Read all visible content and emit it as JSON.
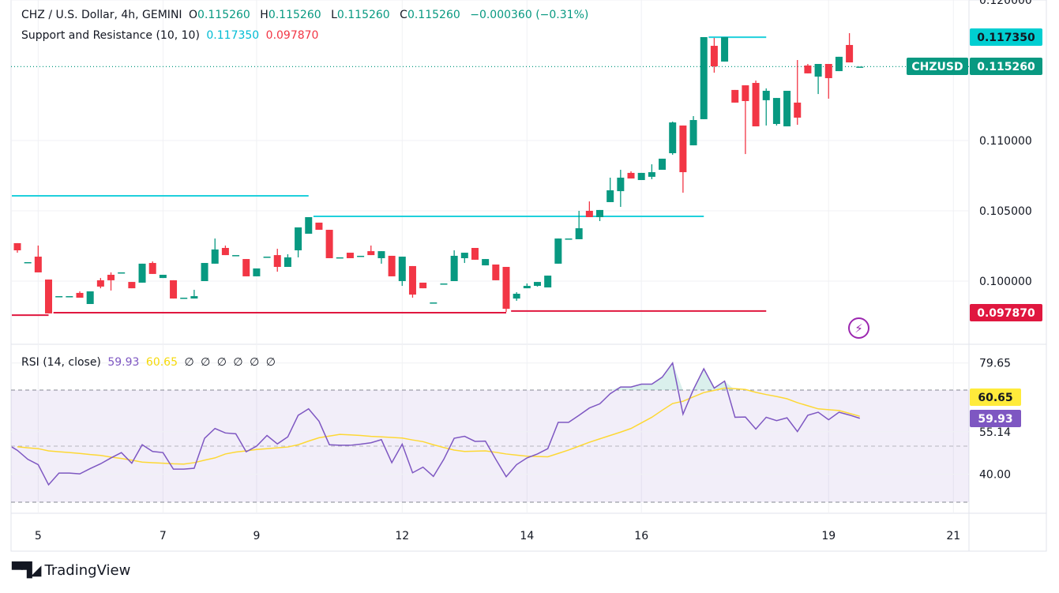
{
  "header": {
    "symbol": "CHZ / U.S. Dollar, 4h, GEMINI",
    "o_label": "O",
    "o": "0.115260",
    "h_label": "H",
    "h": "0.115260",
    "l_label": "L",
    "l": "0.115260",
    "c_label": "C",
    "c": "0.115260",
    "change": "−0.000360 (−0.31%)"
  },
  "indicator": {
    "name": "Support and Resistance (10, 10)",
    "resistance": "0.117350",
    "support": "0.097870"
  },
  "rsi_legend": {
    "name": "RSI (14, close)",
    "rsi": "59.93",
    "ma": "60.65",
    "empty_values": [
      "∅",
      "∅",
      "∅",
      "∅",
      "∅",
      "∅"
    ]
  },
  "badges": {
    "resistance": "0.117350",
    "symbol": "CHZUSD",
    "last_price": "0.115260",
    "support": "0.097870",
    "rsi_ma": "60.65",
    "rsi": "59.93"
  },
  "colors": {
    "up": "#089981",
    "down": "#f23645",
    "resistance": "#1fd0dc",
    "support": "#e0173f",
    "rsi": "#7e57c2",
    "rsi_ma": "#fdd835",
    "last_price": "#089981"
  },
  "branding": {
    "logo_text": "TradingView",
    "logo_mark": "TV"
  },
  "icons": {
    "alert": "lightning-icon"
  },
  "chart_data": [
    {
      "type": "candlestick",
      "title": "CHZ / U.S. Dollar, 4h, GEMINI",
      "ylim": [
        0.0953,
        0.12
      ],
      "y_ticks": [
        "0.120000",
        "0.110000",
        "0.105000",
        "0.100000"
      ],
      "y_tick_values": [
        0.12,
        0.11,
        0.105,
        0.1
      ],
      "x_ticks": [
        {
          "label": "5",
          "candle": 3
        },
        {
          "label": "7",
          "candle": 15
        },
        {
          "label": "9",
          "candle": 24
        },
        {
          "label": "12",
          "candle": 38
        },
        {
          "label": "14",
          "candle": 50
        },
        {
          "label": "16",
          "candle": 61
        },
        {
          "label": "19",
          "candle": 79
        },
        {
          "label": "21",
          "candle": 91
        }
      ],
      "last_price": 0.11526,
      "candles_ohlc": [
        [
          0.1027,
          0.1027,
          0.10202,
          0.10219
        ],
        [
          0.10135,
          0.10135,
          0.10135,
          0.10135
        ],
        [
          0.10174,
          0.10253,
          0.10062,
          0.10062
        ],
        [
          0.10011,
          0.10011,
          0.0977,
          0.0977
        ],
        [
          0.09893,
          0.09893,
          0.09893,
          0.09893
        ],
        [
          0.09893,
          0.09893,
          0.09893,
          0.09893
        ],
        [
          0.09916,
          0.09927,
          0.09882,
          0.09882
        ],
        [
          0.09837,
          0.09927,
          0.09837,
          0.09927
        ],
        [
          0.10006,
          0.10022,
          0.09949,
          0.09961
        ],
        [
          0.10045,
          0.10062,
          0.09933,
          0.10006
        ],
        [
          0.10062,
          0.10062,
          0.10062,
          0.10062
        ],
        [
          0.09994,
          0.09994,
          0.09949,
          0.09949
        ],
        [
          0.09989,
          0.10124,
          0.09989,
          0.10124
        ],
        [
          0.10129,
          0.1014,
          0.10051,
          0.10051
        ],
        [
          0.10022,
          0.10045,
          0.10022,
          0.10045
        ],
        [
          0.10006,
          0.10006,
          0.09876,
          0.09876
        ],
        [
          0.09882,
          0.09882,
          0.09882,
          0.09882
        ],
        [
          0.09876,
          0.09938,
          0.09876,
          0.09893
        ],
        [
          0.1,
          0.10129,
          0.1,
          0.10129
        ],
        [
          0.10124,
          0.10303,
          0.10124,
          0.10225
        ],
        [
          0.10236,
          0.10253,
          0.10185,
          0.10185
        ],
        [
          0.10185,
          0.10185,
          0.10185,
          0.10185
        ],
        [
          0.10157,
          0.10157,
          0.10034,
          0.10034
        ],
        [
          0.10034,
          0.1009,
          0.10034,
          0.1009
        ],
        [
          0.10174,
          0.10174,
          0.10174,
          0.10174
        ],
        [
          0.10185,
          0.1023,
          0.10067,
          0.10101
        ],
        [
          0.10101,
          0.10191,
          0.10101,
          0.10169
        ],
        [
          0.10219,
          0.10382,
          0.10169,
          0.10382
        ],
        [
          0.10337,
          0.10455,
          0.10337,
          0.10455
        ],
        [
          0.10416,
          0.10416,
          0.10365,
          0.10365
        ],
        [
          0.10365,
          0.10365,
          0.10163,
          0.10163
        ],
        [
          0.10169,
          0.10169,
          0.10169,
          0.10169
        ],
        [
          0.10202,
          0.10202,
          0.10163,
          0.10163
        ],
        [
          0.1018,
          0.1018,
          0.1018,
          0.1018
        ],
        [
          0.10213,
          0.10253,
          0.10185,
          0.10185
        ],
        [
          0.10163,
          0.10213,
          0.10124,
          0.10213
        ],
        [
          0.1018,
          0.1018,
          0.10034,
          0.10034
        ],
        [
          0.1,
          0.10174,
          0.09966,
          0.10174
        ],
        [
          0.10107,
          0.10107,
          0.09882,
          0.09904
        ],
        [
          0.09989,
          0.09989,
          0.09949,
          0.09949
        ],
        [
          0.09848,
          0.09848,
          0.09848,
          0.09848
        ],
        [
          0.09983,
          0.09983,
          0.09983,
          0.09983
        ],
        [
          0.1,
          0.10219,
          0.1,
          0.1018
        ],
        [
          0.10163,
          0.10202,
          0.10129,
          0.10202
        ],
        [
          0.10236,
          0.10236,
          0.10152,
          0.10152
        ],
        [
          0.10112,
          0.10157,
          0.10112,
          0.10157
        ],
        [
          0.10118,
          0.10118,
          0.10006,
          0.10006
        ],
        [
          0.10101,
          0.10101,
          0.09781,
          0.09803
        ],
        [
          0.09876,
          0.09921,
          0.0986,
          0.0991
        ],
        [
          0.09949,
          0.09983,
          0.09949,
          0.09966
        ],
        [
          0.09966,
          0.09994,
          0.09961,
          0.09994
        ],
        [
          0.09955,
          0.10039,
          0.09955,
          0.10039
        ],
        [
          0.10124,
          0.10303,
          0.10124,
          0.10303
        ],
        [
          0.10303,
          0.10303,
          0.10303,
          0.10303
        ],
        [
          0.10298,
          0.105,
          0.10298,
          0.10376
        ],
        [
          0.105,
          0.10567,
          0.10455,
          0.10455
        ],
        [
          0.10455,
          0.10506,
          0.10427,
          0.10506
        ],
        [
          0.10562,
          0.10736,
          0.10562,
          0.10646
        ],
        [
          0.1064,
          0.10792,
          0.10528,
          0.10736
        ],
        [
          0.1077,
          0.10781,
          0.1073,
          0.1073
        ],
        [
          0.10719,
          0.1077,
          0.10719,
          0.1077
        ],
        [
          0.10742,
          0.10831,
          0.10725,
          0.10775
        ],
        [
          0.10792,
          0.10871,
          0.10792,
          0.10871
        ],
        [
          0.1091,
          0.11135,
          0.10899,
          0.11129
        ],
        [
          0.11107,
          0.11107,
          0.10629,
          0.10775
        ],
        [
          0.10966,
          0.11174,
          0.10966,
          0.11146
        ],
        [
          0.11152,
          0.11736,
          0.11152,
          0.11736
        ],
        [
          0.11674,
          0.1173,
          0.11483,
          0.11528
        ],
        [
          0.11562,
          0.11736,
          0.11562,
          0.11736
        ],
        [
          0.1136,
          0.1136,
          0.1127,
          0.1127
        ],
        [
          0.11393,
          0.11393,
          0.10904,
          0.11281
        ],
        [
          0.1141,
          0.11427,
          0.11101,
          0.11101
        ],
        [
          0.11287,
          0.11371,
          0.11107,
          0.11354
        ],
        [
          0.11118,
          0.11303,
          0.11107,
          0.11303
        ],
        [
          0.11101,
          0.11354,
          0.11101,
          0.11354
        ],
        [
          0.1127,
          0.11573,
          0.11112,
          0.11163
        ],
        [
          0.11534,
          0.11545,
          0.11478,
          0.11478
        ],
        [
          0.11455,
          0.11545,
          0.11331,
          0.11545
        ],
        [
          0.11545,
          0.11545,
          0.11298,
          0.11444
        ],
        [
          0.11494,
          0.11596,
          0.11494,
          0.11596
        ],
        [
          0.1168,
          0.11764,
          0.11556,
          0.11556
        ],
        [
          0.11526,
          0.11526,
          0.11526,
          0.11526
        ]
      ],
      "resistance_segments": [
        {
          "from": 0,
          "to": 28,
          "price": 0.10607
        },
        {
          "from": 29,
          "to": 66,
          "price": 0.10461
        },
        {
          "from": 67,
          "to": 72,
          "price": 0.11735
        }
      ],
      "support_segments": [
        {
          "from": 0,
          "to": 3,
          "price": 0.09758
        },
        {
          "from": 4,
          "to": 47,
          "price": 0.09775
        },
        {
          "from": 48,
          "to": 72,
          "price": 0.09787
        }
      ]
    },
    {
      "type": "line",
      "title": "RSI (14, close)",
      "ylim": [
        25,
        85
      ],
      "bands": {
        "upper": 70,
        "middle": 50,
        "lower": 30
      },
      "y_ticks": [
        "79.65",
        "55.14",
        "40.00"
      ],
      "y_tick_values": [
        79.65,
        55.14,
        40.0
      ],
      "series": [
        {
          "name": "RSI",
          "values": [
            48.5,
            45.3,
            43.4,
            36.2,
            40.4,
            40.4,
            40.1,
            42.0,
            43.7,
            45.8,
            47.7,
            43.9,
            50.5,
            48.1,
            47.7,
            41.8,
            41.8,
            42.1,
            52.8,
            56.3,
            54.7,
            54.4,
            48.0,
            50.0,
            53.8,
            50.8,
            53.3,
            61.0,
            63.3,
            58.9,
            50.5,
            50.3,
            50.3,
            50.7,
            51.2,
            52.3,
            44.1,
            50.7,
            40.5,
            42.5,
            39.2,
            45.3,
            52.8,
            53.5,
            51.7,
            51.8,
            45.3,
            39.1,
            43.4,
            45.8,
            47.2,
            49.1,
            58.5,
            58.5,
            61.0,
            63.6,
            65.1,
            68.7,
            71.1,
            71.1,
            72.1,
            72.1,
            74.6,
            79.65,
            61.4,
            70.2,
            77.6,
            70.7,
            73.2,
            60.3,
            60.4,
            56.1,
            60.3,
            59.1,
            60.1,
            55.2,
            61.0,
            62.1,
            59.4,
            62.1,
            61.1,
            59.93
          ]
        },
        {
          "name": "RSI-based MA",
          "values": [
            49.8,
            49.4,
            49.1,
            48.3,
            48.0,
            47.7,
            47.4,
            47.0,
            46.7,
            46.1,
            45.6,
            45.0,
            44.3,
            44.1,
            43.9,
            43.7,
            43.6,
            44.1,
            45.0,
            45.8,
            47.2,
            47.9,
            48.3,
            48.8,
            49.1,
            49.4,
            49.7,
            50.5,
            51.8,
            53.0,
            53.6,
            54.2,
            54.0,
            53.8,
            53.5,
            53.3,
            53.1,
            52.9,
            52.2,
            51.6,
            50.5,
            49.5,
            48.6,
            48.1,
            48.2,
            48.3,
            47.8,
            47.2,
            46.8,
            46.4,
            46.3,
            46.2,
            47.4,
            48.6,
            50.0,
            51.4,
            52.6,
            53.8,
            55.0,
            56.3,
            58.3,
            60.3,
            62.8,
            65.2,
            66.0,
            67.6,
            69.1,
            69.9,
            70.7,
            70.5,
            70.2,
            69.2,
            68.4,
            67.7,
            66.9,
            65.5,
            64.4,
            63.3,
            63.0,
            62.7,
            61.7,
            60.65
          ]
        }
      ]
    }
  ]
}
